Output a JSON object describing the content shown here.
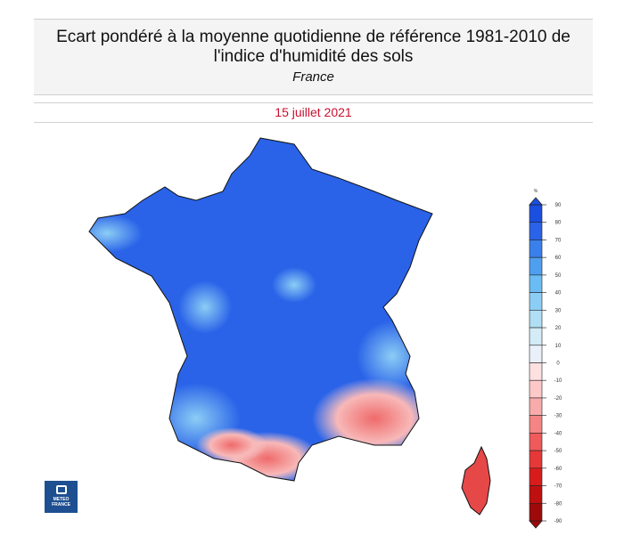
{
  "header": {
    "title": "Ecart pondéré à la moyenne quotidienne de référence 1981-2010 de l'indice d'humidité des sols",
    "region": "France",
    "date": "15 juillet 2021"
  },
  "legend": {
    "unit": "%",
    "ticks": [
      90,
      80,
      70,
      60,
      50,
      40,
      30,
      20,
      10,
      0,
      -10,
      -20,
      -30,
      -40,
      -50,
      -60,
      -70,
      -80,
      -90
    ],
    "colors": [
      "#1a4fe0",
      "#2a63e8",
      "#3a80ec",
      "#4f9ff0",
      "#6bbcf4",
      "#8ccdf5",
      "#b0def4",
      "#d3ecf7",
      "#eaf0fa",
      "#fde0e0",
      "#fcc8c8",
      "#f9aaaa",
      "#f58484",
      "#ef5a5a",
      "#e63838",
      "#d81c1c",
      "#bf1010",
      "#9e0a0a"
    ]
  },
  "logo": {
    "text": "METEO FRANCE"
  }
}
